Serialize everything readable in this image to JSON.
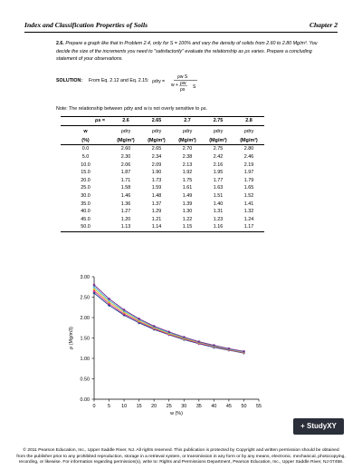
{
  "header": {
    "title": "Index and Classification Properties of Soils",
    "chapter": "Chapter 2"
  },
  "problem": {
    "number": "2.6.",
    "text": "Prepare a graph like that in Problem 2.4, only for S = 100% and vary the density of solids from 2.60 to 2.80 Mg/m³. You decide the size of the increments you need to \"satisfactorily\" evaluate the relationship as ρs varies. Prepare a concluding statement of your observations."
  },
  "solution": {
    "label": "SOLUTION:",
    "text": "From Eq. 2.12 and Eq. 2.15:",
    "eq_lhs": "ρdry =",
    "eq_num": "ρw S",
    "eq_den_a": "w +",
    "eq_frac_num": "ρw",
    "eq_frac_den": "ρs",
    "eq_s": "S"
  },
  "note": "Note: The relationship between ρdry and w is not overly sensitive to ρs.",
  "table": {
    "rho_s_label": "ρs =",
    "rho_s_values": [
      "2.6",
      "2.65",
      "2.7",
      "2.75",
      "2.8"
    ],
    "w_header": "w",
    "w_unit": "(%)",
    "col_header": "ρdry",
    "col_unit": "(Mg/m³)",
    "rows": [
      [
        "0.0",
        "2.60",
        "2.65",
        "2.70",
        "2.75",
        "2.80"
      ],
      [
        "5.0",
        "2.30",
        "2.34",
        "2.38",
        "2.42",
        "2.46"
      ],
      [
        "10.0",
        "2.06",
        "2.09",
        "2.13",
        "2.16",
        "2.19"
      ],
      [
        "15.0",
        "1.87",
        "1.90",
        "1.92",
        "1.95",
        "1.97"
      ],
      [
        "20.0",
        "1.71",
        "1.73",
        "1.75",
        "1.77",
        "1.79"
      ],
      [
        "25.0",
        "1.58",
        "1.59",
        "1.61",
        "1.63",
        "1.65"
      ],
      [
        "30.0",
        "1.46",
        "1.48",
        "1.49",
        "1.51",
        "1.52"
      ],
      [
        "35.0",
        "1.36",
        "1.37",
        "1.39",
        "1.40",
        "1.41"
      ],
      [
        "40.0",
        "1.27",
        "1.29",
        "1.30",
        "1.31",
        "1.32"
      ],
      [
        "45.0",
        "1.20",
        "1.21",
        "1.22",
        "1.23",
        "1.24"
      ],
      [
        "50.0",
        "1.13",
        "1.14",
        "1.15",
        "1.16",
        "1.17"
      ]
    ]
  },
  "chart_data": {
    "type": "line",
    "title": "",
    "xlabel": "w (%)",
    "ylabel": "ρ (Mg/m3)",
    "xlim": [
      0,
      55
    ],
    "ylim": [
      0,
      3
    ],
    "xticks": [
      "0",
      "5",
      "10",
      "15",
      "20",
      "25",
      "30",
      "35",
      "40",
      "45",
      "50",
      "55"
    ],
    "yticks": [
      "0.00",
      "0.50",
      "1.00",
      "1.50",
      "2.00",
      "2.50",
      "3.00"
    ],
    "x": [
      0,
      5,
      10,
      15,
      20,
      25,
      30,
      35,
      40,
      45,
      50
    ],
    "series": [
      {
        "color": "#1f3b8c",
        "marker": "diamond",
        "values": [
          2.6,
          2.3,
          2.06,
          1.87,
          1.71,
          1.58,
          1.46,
          1.36,
          1.27,
          1.2,
          1.13
        ]
      },
      {
        "color": "#d63384",
        "marker": "square",
        "values": [
          2.65,
          2.34,
          2.09,
          1.9,
          1.73,
          1.59,
          1.48,
          1.37,
          1.29,
          1.21,
          1.14
        ]
      },
      {
        "color": "#e0c020",
        "marker": "triangle",
        "values": [
          2.7,
          2.38,
          2.13,
          1.92,
          1.75,
          1.61,
          1.49,
          1.39,
          1.3,
          1.22,
          1.15
        ]
      },
      {
        "color": "#3fb6d8",
        "marker": "x",
        "values": [
          2.75,
          2.42,
          2.16,
          1.95,
          1.77,
          1.63,
          1.51,
          1.4,
          1.31,
          1.23,
          1.16
        ]
      },
      {
        "color": "#7b2a8a",
        "marker": "star",
        "values": [
          2.8,
          2.46,
          2.19,
          1.97,
          1.79,
          1.65,
          1.52,
          1.41,
          1.32,
          1.24,
          1.17
        ]
      }
    ],
    "grid": false,
    "legend": "none"
  },
  "logo": {
    "text": "StudyXY"
  },
  "footer": {
    "line1": "© 2011 Pearson Education, Inc., Upper Saddle River, NJ. All rights reserved. This publication is protected by Copyright and written permission should be obtained",
    "line2": "from the publisher prior to any prohibited reproduction, storage in a retrieval system, or transmission in any form or by any means, electronic, mechanical, photocopying,",
    "line3": "recording, or likewise. For information regarding permission(s), write to: Rights and Permissions Department, Pearson Education, Inc., Upper Saddle River, NJ 07458."
  }
}
